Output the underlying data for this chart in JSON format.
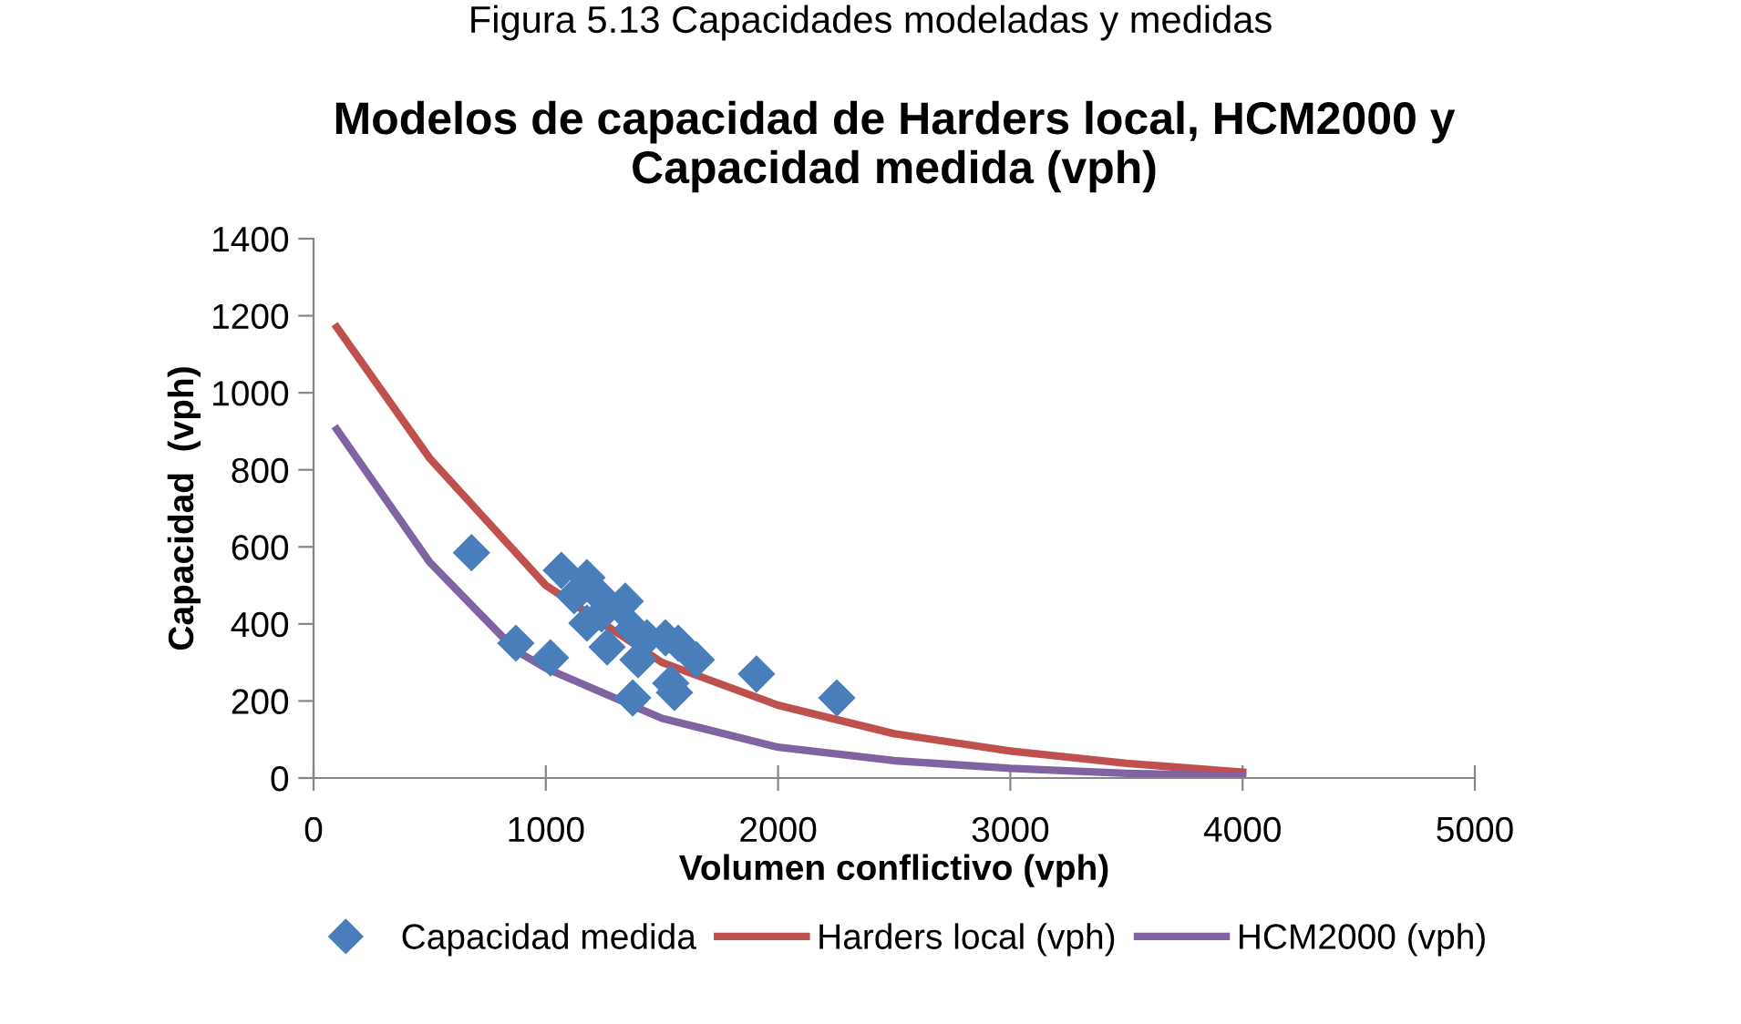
{
  "chart_data": {
    "type": "scatter",
    "title": "Modelos de capacidad de Harders local, HCM2000 y\nCapacidad medida (vph)",
    "xlabel": "Volumen conflictivo (vph)",
    "ylabel": "Capacidad  (vph)",
    "annotations": [
      "Figura 5.13 Capacidades modeladas y medidas"
    ],
    "xlim": [
      0,
      5000
    ],
    "xticks": [
      0,
      1000,
      2000,
      3000,
      4000,
      5000
    ],
    "ylim": [
      0,
      1400
    ],
    "yticks": [
      0,
      200,
      400,
      600,
      800,
      1000,
      1200,
      1400
    ],
    "grid": false,
    "legend": "bottom",
    "series": [
      {
        "name": "Capacidad medida",
        "marker": "diamond",
        "color": "#4a7ebb",
        "x": [
          680,
          871,
          1020,
          1067,
          1177,
          1122,
          1240,
          1177,
          1240,
          1342,
          1319,
          1264,
          1374,
          1397,
          1436,
          1515,
          1570,
          1648,
          1374,
          1538,
          1554,
          1907,
          2253
        ],
        "values": [
          585,
          350,
          312,
          539,
          520,
          473,
          468,
          402,
          426,
          459,
          445,
          340,
          388,
          307,
          364,
          364,
          350,
          307,
          208,
          246,
          222,
          270,
          208
        ]
      },
      {
        "name": "Harders local (vph)",
        "type": "line",
        "marker": "none",
        "color": "#c0504d",
        "x": [
          100,
          500,
          1000,
          1500,
          2000,
          2500,
          3000,
          3500,
          4000
        ],
        "values": [
          1170,
          830,
          500,
          300,
          189,
          115,
          70,
          38,
          15
        ]
      },
      {
        "name": "HCM2000 (vph)",
        "type": "line",
        "marker": "none",
        "color": "#8064a2",
        "x": [
          100,
          500,
          871,
          1000,
          1500,
          2000,
          2500,
          3000,
          3500,
          4000
        ],
        "values": [
          905,
          560,
          331,
          285,
          155,
          80,
          45,
          25,
          12,
          5
        ]
      }
    ]
  }
}
